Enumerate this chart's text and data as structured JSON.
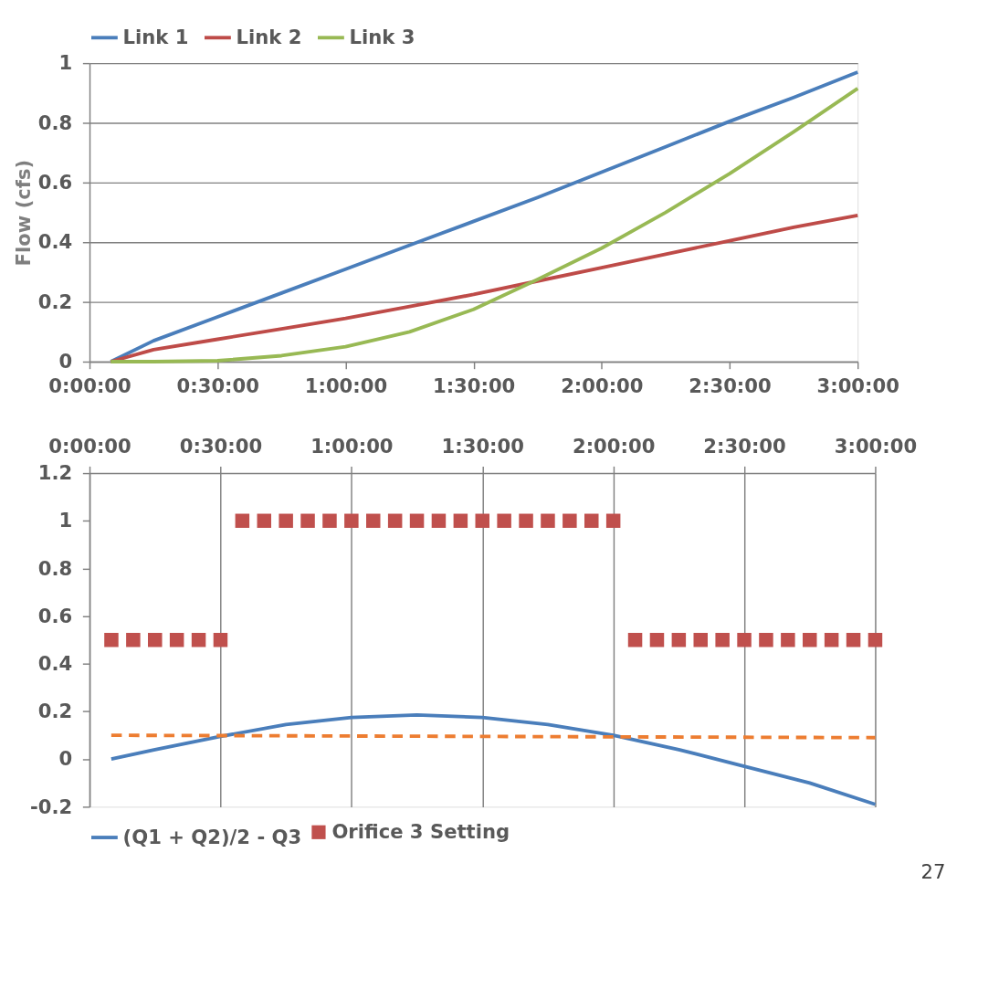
{
  "chart_data": [
    {
      "type": "line",
      "ylabel": "Flow (cfs)",
      "xlim": [
        0,
        3
      ],
      "xticks": [
        {
          "value": 0,
          "label": "0:00:00"
        },
        {
          "value": 0.5,
          "label": "0:30:00"
        },
        {
          "value": 1,
          "label": "1:00:00"
        },
        {
          "value": 1.5,
          "label": "1:30:00"
        },
        {
          "value": 2,
          "label": "2:00:00"
        },
        {
          "value": 2.5,
          "label": "2:30:00"
        },
        {
          "value": 3,
          "label": "3:00:00"
        }
      ],
      "ylim": [
        0,
        1
      ],
      "yticks": [
        0,
        0.2,
        0.4,
        0.6,
        0.8,
        1
      ],
      "grid": "y",
      "legend": "top",
      "marker": "none",
      "line_style": "solid",
      "x": [
        0.083,
        0.25,
        0.5,
        0.75,
        1.0,
        1.25,
        1.5,
        1.75,
        2.0,
        2.25,
        2.5,
        2.75,
        3.0
      ],
      "series": [
        {
          "name": "Link 1",
          "color": "#4a7ebb",
          "values": [
            0,
            0.07,
            0.15,
            0.23,
            0.31,
            0.39,
            0.47,
            0.55,
            0.635,
            0.72,
            0.805,
            0.885,
            0.97
          ]
        },
        {
          "name": "Link 2",
          "color": "#be4b48",
          "values": [
            0,
            0.04,
            0.075,
            0.11,
            0.145,
            0.185,
            0.225,
            0.27,
            0.315,
            0.36,
            0.405,
            0.45,
            0.49
          ]
        },
        {
          "name": "Link 3",
          "color": "#98b954",
          "values": [
            0,
            0,
            0.003,
            0.02,
            0.05,
            0.1,
            0.175,
            0.275,
            0.38,
            0.5,
            0.63,
            0.77,
            0.915
          ]
        }
      ]
    },
    {
      "type": "line",
      "xlim": [
        0,
        3
      ],
      "xticks": [
        {
          "value": 0,
          "label": "0:00:00"
        },
        {
          "value": 0.5,
          "label": "0:30:00"
        },
        {
          "value": 1,
          "label": "1:00:00"
        },
        {
          "value": 1.5,
          "label": "1:30:00"
        },
        {
          "value": 2,
          "label": "2:00:00"
        },
        {
          "value": 2.5,
          "label": "2:30:00"
        },
        {
          "value": 3,
          "label": "3:00:00"
        }
      ],
      "ylim": [
        -0.2,
        1.2
      ],
      "yticks": [
        -0.2,
        0,
        0.2,
        0.4,
        0.6,
        0.8,
        1,
        1.2
      ],
      "grid": "x",
      "legend": "bottom",
      "annotations": [
        "27"
      ],
      "series": [
        {
          "name": "(Q1 + Q2)/2 - Q3",
          "color": "#4a7ebb",
          "type": "line",
          "marker": "none",
          "line_style": "solid",
          "x": [
            0.083,
            0.25,
            0.5,
            0.75,
            1.0,
            1.25,
            1.5,
            1.75,
            2.0,
            2.25,
            2.5,
            2.75,
            3.0
          ],
          "values": [
            0,
            0.04,
            0.095,
            0.145,
            0.175,
            0.185,
            0.175,
            0.145,
            0.1,
            0.04,
            -0.03,
            -0.1,
            -0.19
          ]
        },
        {
          "name": "Orifice 3 Setting",
          "color": "#c0504d",
          "type": "scatter",
          "marker": "square",
          "x": [
            0.0833,
            0.1667,
            0.25,
            0.3333,
            0.4167,
            0.5,
            0.5833,
            0.6667,
            0.75,
            0.8333,
            0.9167,
            1.0,
            1.0833,
            1.1667,
            1.25,
            1.3333,
            1.4167,
            1.5,
            1.5833,
            1.6667,
            1.75,
            1.8333,
            1.9167,
            2.0,
            2.0833,
            2.1667,
            2.25,
            2.3333,
            2.4167,
            2.5,
            2.5833,
            2.6667,
            2.75,
            2.8333,
            2.9167,
            3.0
          ],
          "values": [
            0.5,
            0.5,
            0.5,
            0.5,
            0.5,
            0.5,
            1,
            1,
            1,
            1,
            1,
            1,
            1,
            1,
            1,
            1,
            1,
            1,
            1,
            1,
            1,
            1,
            1,
            1,
            0.5,
            0.5,
            0.5,
            0.5,
            0.5,
            0.5,
            0.5,
            0.5,
            0.5,
            0.5,
            0.5,
            0.5
          ]
        },
        {
          "color": "#ed7d31",
          "type": "line",
          "marker": "none",
          "line_style": "dashed",
          "x": [
            0.083,
            3.0
          ],
          "values": [
            0.1,
            0.09
          ]
        }
      ]
    }
  ]
}
